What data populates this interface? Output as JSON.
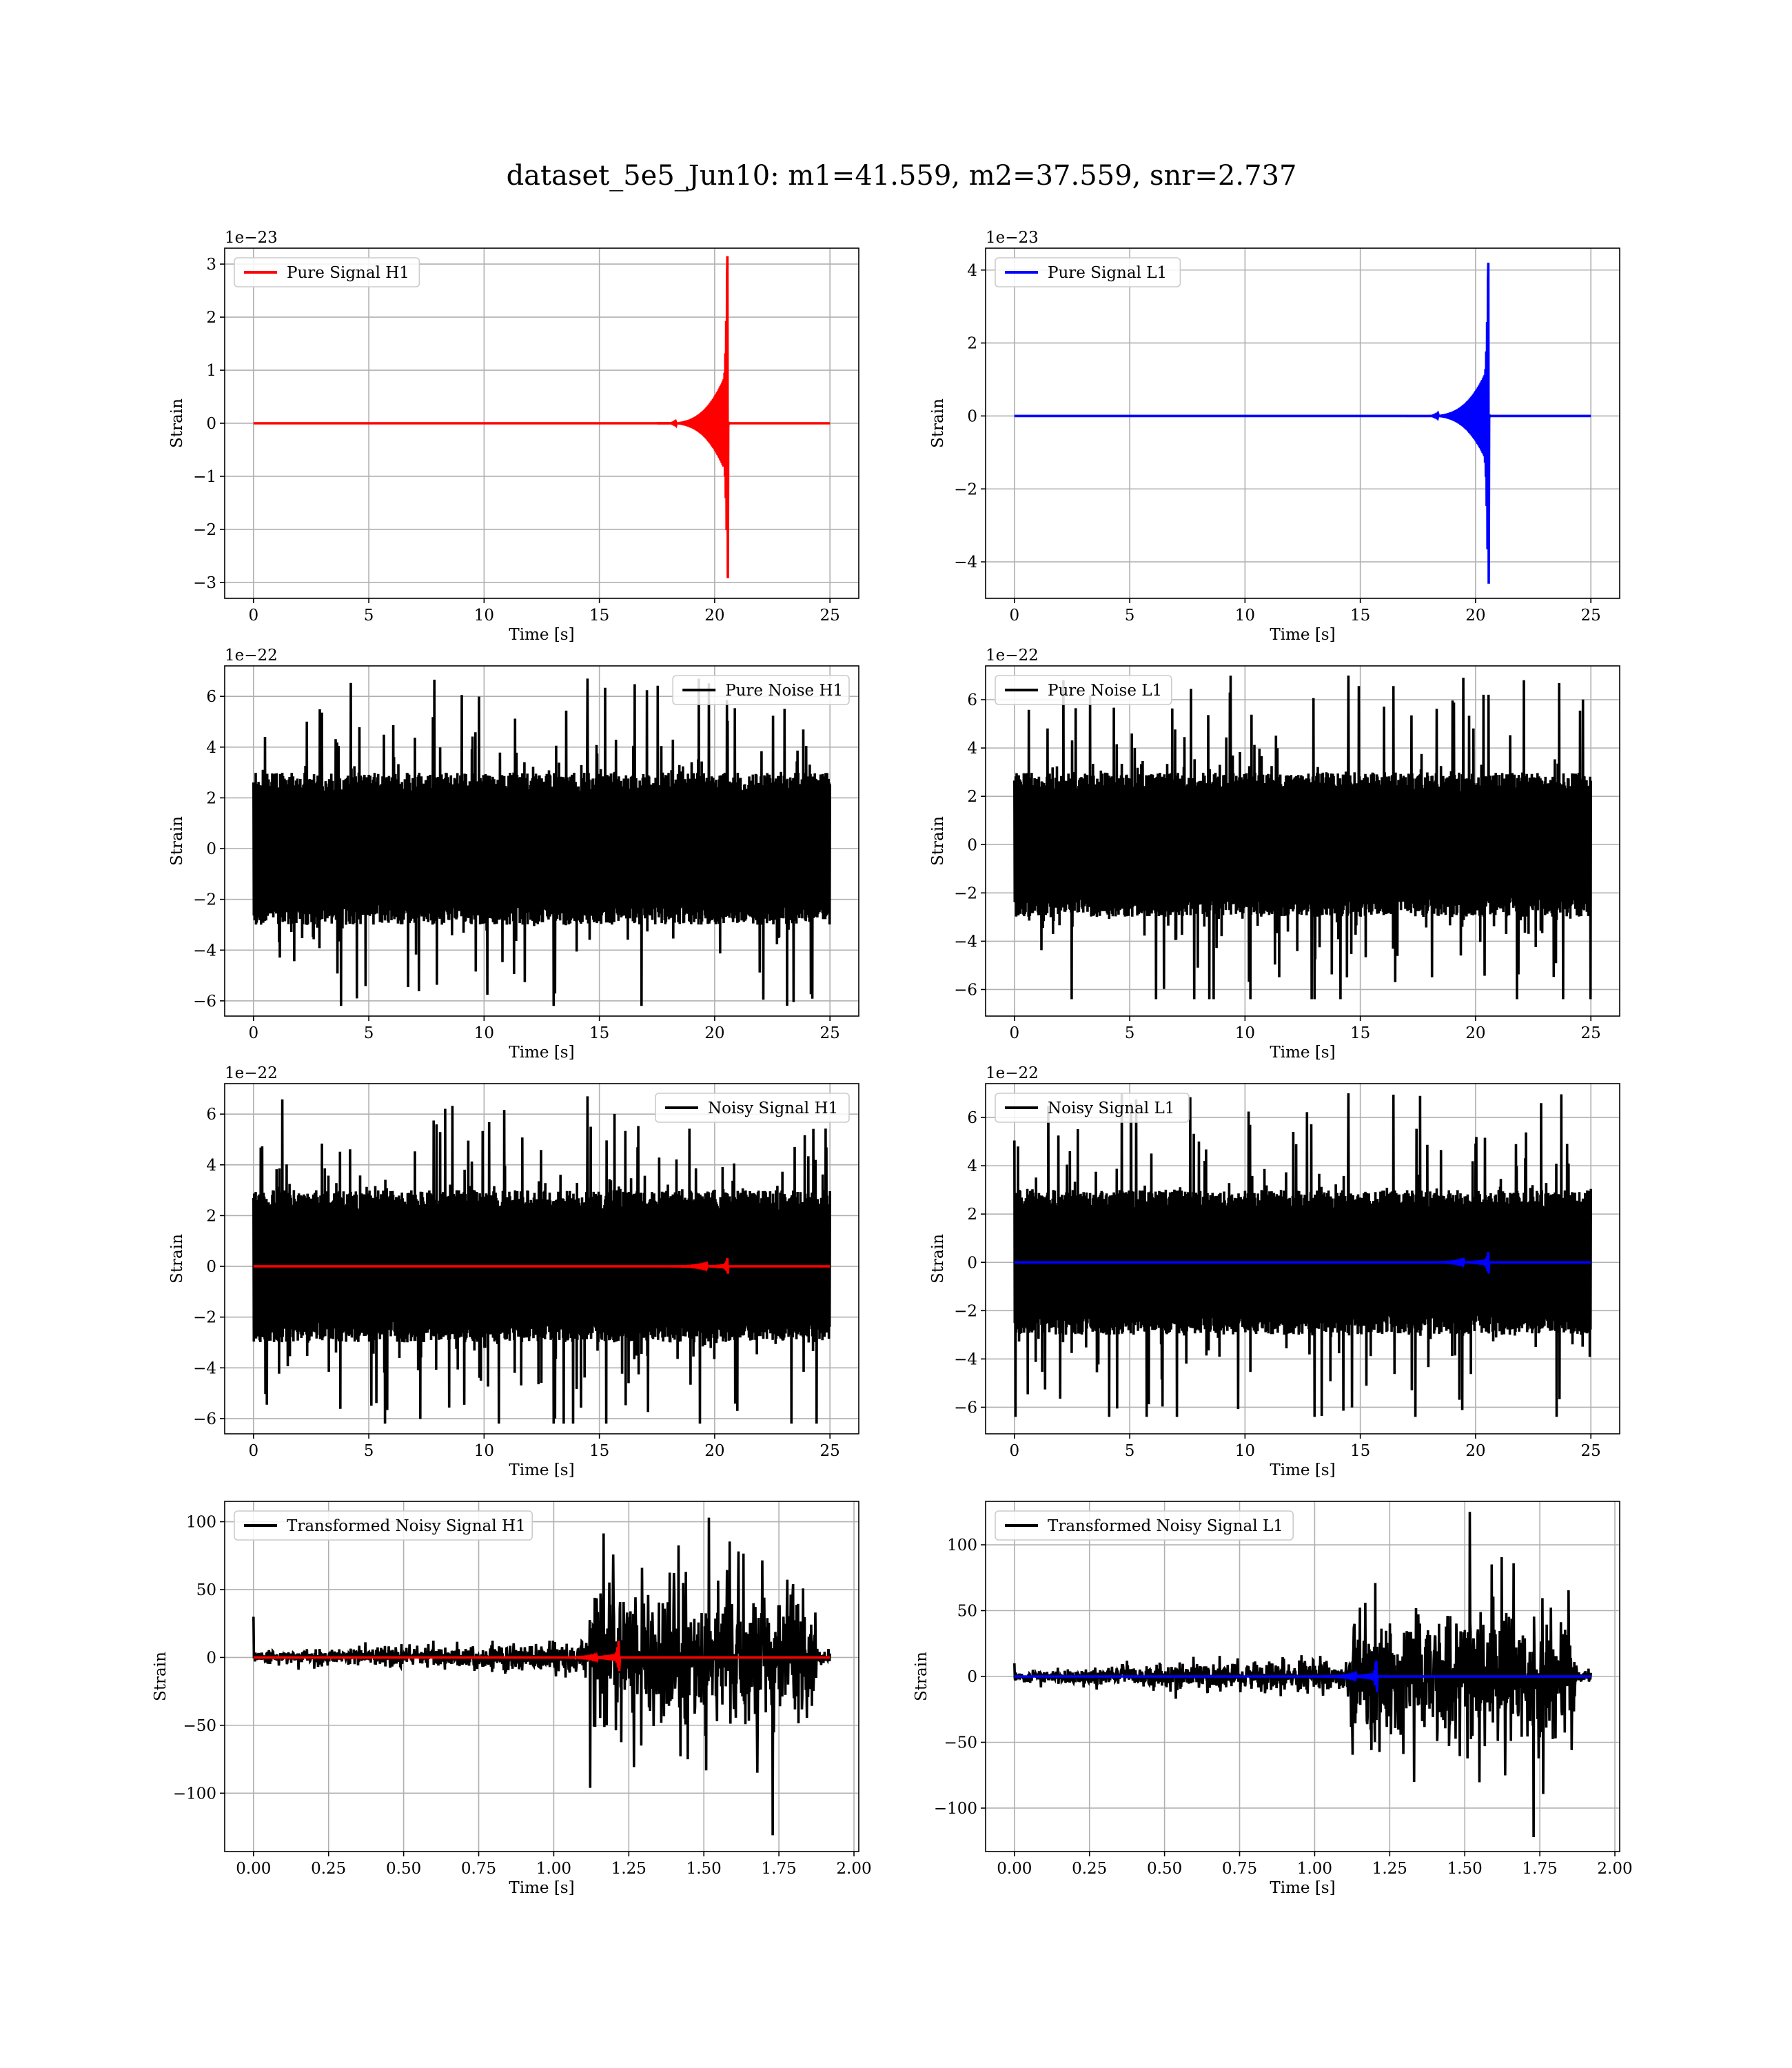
{
  "figure": {
    "suptitle": "dataset_5e5_Jun10: m1=41.559, m2=37.559, snr=2.737"
  },
  "colors": {
    "h1": "#ff0000",
    "l1": "#0000ff",
    "noise": "#000000",
    "grid": "#b0b0b0"
  },
  "chart_data": [
    {
      "id": "pure-signal-h1",
      "type": "line",
      "kind": "chirp",
      "title": "",
      "xlabel": "Time [s]",
      "ylabel": "Strain",
      "offset_text": "1e−23",
      "xlim": [
        -1.25,
        26.25
      ],
      "ylim": [
        -3.3,
        3.3
      ],
      "xticks": [
        0,
        5,
        10,
        15,
        20,
        25
      ],
      "xtick_labels": [
        "0",
        "5",
        "10",
        "15",
        "20",
        "25"
      ],
      "yticks": [
        -3,
        -2,
        -1,
        0,
        1,
        2,
        3
      ],
      "ytick_labels": [
        "−3",
        "−2",
        "−1",
        "0",
        "1",
        "2",
        "3"
      ],
      "legend": {
        "position": "top-left",
        "entries": [
          {
            "label": "Pure Signal H1",
            "color": "#ff0000"
          }
        ]
      },
      "series": [
        {
          "name": "Pure Signal H1",
          "color": "#ff0000",
          "x_range": [
            0,
            25
          ],
          "merger_time": 20.55,
          "peak_positive": 3.15,
          "peak_negative": -2.92,
          "inspiral_amplitude": 1.0
        }
      ]
    },
    {
      "id": "pure-signal-l1",
      "type": "line",
      "kind": "chirp",
      "title": "",
      "xlabel": "Time [s]",
      "ylabel": "Strain",
      "offset_text": "1e−23",
      "xlim": [
        -1.25,
        26.25
      ],
      "ylim": [
        -5.0,
        4.6
      ],
      "xticks": [
        0,
        5,
        10,
        15,
        20,
        25
      ],
      "xtick_labels": [
        "0",
        "5",
        "10",
        "15",
        "20",
        "25"
      ],
      "yticks": [
        -4,
        -2,
        0,
        2,
        4
      ],
      "ytick_labels": [
        "−4",
        "−2",
        "0",
        "2",
        "4"
      ],
      "legend": {
        "position": "top-left",
        "entries": [
          {
            "label": "Pure Signal L1",
            "color": "#0000ff"
          }
        ]
      },
      "series": [
        {
          "name": "Pure Signal L1",
          "color": "#0000ff",
          "x_range": [
            0,
            25
          ],
          "merger_time": 20.55,
          "peak_positive": 4.2,
          "peak_negative": -4.6,
          "inspiral_amplitude": 1.35
        }
      ]
    },
    {
      "id": "pure-noise-h1",
      "type": "line",
      "kind": "noise",
      "title": "",
      "xlabel": "Time [s]",
      "ylabel": "Strain",
      "offset_text": "1e−22",
      "xlim": [
        -1.25,
        26.25
      ],
      "ylim": [
        -6.6,
        7.2
      ],
      "xticks": [
        0,
        5,
        10,
        15,
        20,
        25
      ],
      "xtick_labels": [
        "0",
        "5",
        "10",
        "15",
        "20",
        "25"
      ],
      "yticks": [
        -6,
        -4,
        -2,
        0,
        2,
        4,
        6
      ],
      "ytick_labels": [
        "−6",
        "−4",
        "−2",
        "0",
        "2",
        "4",
        "6"
      ],
      "legend": {
        "position": "top-right",
        "entries": [
          {
            "label": "Pure Noise H1",
            "color": "#000000"
          }
        ]
      },
      "series": [
        {
          "name": "Pure Noise H1",
          "color": "#000000",
          "x_range": [
            0,
            25
          ],
          "max": 6.7,
          "min": -6.2,
          "band": 3.0
        }
      ]
    },
    {
      "id": "pure-noise-l1",
      "type": "line",
      "kind": "noise",
      "title": "",
      "xlabel": "Time [s]",
      "ylabel": "Strain",
      "offset_text": "1e−22",
      "xlim": [
        -1.25,
        26.25
      ],
      "ylim": [
        -7.1,
        7.4
      ],
      "xticks": [
        0,
        5,
        10,
        15,
        20,
        25
      ],
      "xtick_labels": [
        "0",
        "5",
        "10",
        "15",
        "20",
        "25"
      ],
      "yticks": [
        -6,
        -4,
        -2,
        0,
        2,
        4,
        6
      ],
      "ytick_labels": [
        "−6",
        "−4",
        "−2",
        "0",
        "2",
        "4",
        "6"
      ],
      "legend": {
        "position": "top-left",
        "entries": [
          {
            "label": "Pure Noise L1",
            "color": "#000000"
          }
        ]
      },
      "series": [
        {
          "name": "Pure Noise L1",
          "color": "#000000",
          "x_range": [
            0,
            25
          ],
          "max": 7.0,
          "min": -6.4,
          "band": 3.0
        }
      ]
    },
    {
      "id": "noisy-signal-h1",
      "type": "line",
      "kind": "noisy",
      "title": "",
      "xlabel": "Time [s]",
      "ylabel": "Strain",
      "offset_text": "1e−22",
      "xlim": [
        -1.25,
        26.25
      ],
      "ylim": [
        -6.6,
        7.2
      ],
      "xticks": [
        0,
        5,
        10,
        15,
        20,
        25
      ],
      "xtick_labels": [
        "0",
        "5",
        "10",
        "15",
        "20",
        "25"
      ],
      "yticks": [
        -6,
        -4,
        -2,
        0,
        2,
        4,
        6
      ],
      "ytick_labels": [
        "−6",
        "−4",
        "−2",
        "0",
        "2",
        "4",
        "6"
      ],
      "legend": {
        "position": "top-right",
        "entries": [
          {
            "label": "Noisy Signal H1",
            "color": "#000000"
          }
        ]
      },
      "series": [
        {
          "name": "Noisy Signal H1",
          "color": "#000000",
          "x_range": [
            0,
            25
          ],
          "max": 6.7,
          "min": -6.2,
          "band": 3.0
        },
        {
          "color": "#ff0000",
          "x_range": [
            0,
            25
          ],
          "merger_time": 20.55,
          "peak_positive": 0.32,
          "peak_negative": -0.29,
          "inspiral_amplitude": 0.1
        }
      ]
    },
    {
      "id": "noisy-signal-l1",
      "type": "line",
      "kind": "noisy",
      "title": "",
      "xlabel": "Time [s]",
      "ylabel": "Strain",
      "offset_text": "1e−22",
      "xlim": [
        -1.25,
        26.25
      ],
      "ylim": [
        -7.1,
        7.4
      ],
      "xticks": [
        0,
        5,
        10,
        15,
        20,
        25
      ],
      "xtick_labels": [
        "0",
        "5",
        "10",
        "15",
        "20",
        "25"
      ],
      "yticks": [
        -6,
        -4,
        -2,
        0,
        2,
        4,
        6
      ],
      "ytick_labels": [
        "−6",
        "−4",
        "−2",
        "0",
        "2",
        "4",
        "6"
      ],
      "legend": {
        "position": "top-left",
        "entries": [
          {
            "label": "Noisy Signal L1",
            "color": "#000000"
          }
        ]
      },
      "series": [
        {
          "name": "Noisy Signal L1",
          "color": "#000000",
          "x_range": [
            0,
            25
          ],
          "max": 7.0,
          "min": -6.4,
          "band": 3.0
        },
        {
          "color": "#0000ff",
          "x_range": [
            0,
            25
          ],
          "merger_time": 20.55,
          "peak_positive": 0.42,
          "peak_negative": -0.46,
          "inspiral_amplitude": 0.14
        }
      ]
    },
    {
      "id": "transformed-noisy-signal-h1",
      "type": "line",
      "kind": "transformed",
      "title": "",
      "xlabel": "Time [s]",
      "ylabel": "Strain",
      "offset_text": "",
      "xlim": [
        -0.096,
        2.016
      ],
      "ylim": [
        -143,
        115
      ],
      "xticks": [
        0,
        0.25,
        0.5,
        0.75,
        1.0,
        1.25,
        1.5,
        1.75,
        2.0
      ],
      "xtick_labels": [
        "0.00",
        "0.25",
        "0.50",
        "0.75",
        "1.00",
        "1.25",
        "1.50",
        "1.75",
        "2.00"
      ],
      "yticks": [
        -100,
        -50,
        0,
        50,
        100
      ],
      "ytick_labels": [
        "−100",
        "−50",
        "0",
        "50",
        "100"
      ],
      "legend": {
        "position": "top-left",
        "entries": [
          {
            "label": "Transformed Noisy Signal H1",
            "color": "#000000"
          }
        ]
      },
      "series": [
        {
          "name": "Transformed Noisy Signal H1",
          "color": "#000000",
          "x_range": [
            0,
            1.92
          ],
          "jump_time": 1.12,
          "end_time": 1.875,
          "pre_amplitude": 8,
          "post_amplitude": 45,
          "max": 103,
          "min": -131,
          "start_spike": 30
        },
        {
          "color": "#ff0000",
          "x_range": [
            0,
            1.92
          ],
          "merger_time": 1.215,
          "peak_positive": 12,
          "peak_negative": -10,
          "inspiral_amplitude": 3
        }
      ]
    },
    {
      "id": "transformed-noisy-signal-l1",
      "type": "line",
      "kind": "transformed",
      "title": "",
      "xlabel": "Time [s]",
      "ylabel": "Strain",
      "offset_text": "",
      "xlim": [
        -0.096,
        2.016
      ],
      "ylim": [
        -133,
        133
      ],
      "xticks": [
        0,
        0.25,
        0.5,
        0.75,
        1.0,
        1.25,
        1.5,
        1.75,
        2.0
      ],
      "xtick_labels": [
        "0.00",
        "0.25",
        "0.50",
        "0.75",
        "1.00",
        "1.25",
        "1.50",
        "1.75",
        "2.00"
      ],
      "yticks": [
        -100,
        -50,
        0,
        50,
        100
      ],
      "ytick_labels": [
        "−100",
        "−50",
        "0",
        "50",
        "100"
      ],
      "legend": {
        "position": "top-left",
        "entries": [
          {
            "label": "Transformed Noisy Signal L1",
            "color": "#000000"
          }
        ]
      },
      "series": [
        {
          "name": "Transformed Noisy Signal L1",
          "color": "#000000",
          "x_range": [
            0,
            1.92
          ],
          "jump_time": 1.12,
          "end_time": 1.875,
          "pre_amplitude": 9,
          "post_amplitude": 45,
          "max": 125,
          "min": -122,
          "start_spike": 10
        },
        {
          "color": "#0000ff",
          "x_range": [
            0,
            1.92
          ],
          "merger_time": 1.205,
          "peak_positive": 12,
          "peak_negative": -12,
          "inspiral_amplitude": 3
        }
      ]
    }
  ]
}
